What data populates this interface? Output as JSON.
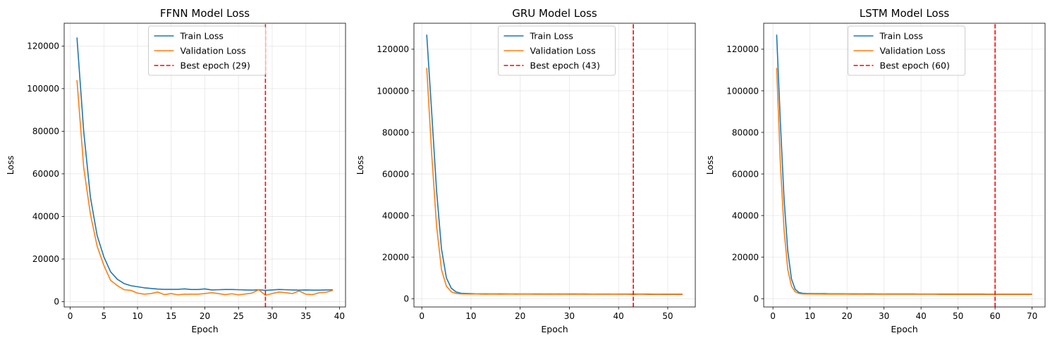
{
  "chart_data": [
    {
      "type": "line",
      "title": "FFNN Model Loss",
      "xlabel": "Epoch",
      "ylabel": "Loss",
      "xlim": [
        -0.9,
        40.9
      ],
      "ylim": [
        -2500,
        130700
      ],
      "xticks": [
        0,
        5,
        10,
        15,
        20,
        25,
        30,
        35,
        40
      ],
      "yticks": [
        0,
        20000,
        40000,
        60000,
        80000,
        100000,
        120000
      ],
      "grid": true,
      "legend_position": "top-center",
      "best_epoch": 29,
      "series": [
        {
          "name": "Train Loss",
          "color": "#1f77b4",
          "style": "solid",
          "x": [
            1,
            2,
            3,
            4,
            5,
            6,
            7,
            8,
            9,
            10,
            11,
            12,
            13,
            14,
            15,
            16,
            17,
            18,
            19,
            20,
            21,
            22,
            23,
            24,
            25,
            26,
            27,
            28,
            29,
            30,
            31,
            32,
            33,
            34,
            35,
            36,
            37,
            38,
            39
          ],
          "y": [
            124000,
            80000,
            49000,
            31000,
            21000,
            14000,
            10500,
            8500,
            7500,
            7000,
            6500,
            6200,
            5900,
            5800,
            5800,
            5800,
            6000,
            5700,
            5700,
            6000,
            5500,
            5600,
            5700,
            5700,
            5600,
            5500,
            5400,
            5600,
            5300,
            5500,
            5700,
            5600,
            5500,
            5400,
            5500,
            5400,
            5400,
            5500,
            5600
          ]
        },
        {
          "name": "Validation Loss",
          "color": "#ff7f0e",
          "style": "solid",
          "x": [
            1,
            2,
            3,
            4,
            5,
            6,
            7,
            8,
            9,
            10,
            11,
            12,
            13,
            14,
            15,
            16,
            17,
            18,
            19,
            20,
            21,
            22,
            23,
            24,
            25,
            26,
            27,
            28,
            29,
            30,
            31,
            32,
            33,
            34,
            35,
            36,
            37,
            38,
            39
          ],
          "y": [
            104000,
            63000,
            41000,
            26000,
            17000,
            10000,
            7500,
            5600,
            5300,
            4000,
            3500,
            3800,
            4500,
            3300,
            3800,
            3200,
            3500,
            3500,
            3500,
            3800,
            4200,
            3800,
            3300,
            3700,
            3200,
            3600,
            4000,
            5600,
            3000,
            3800,
            4500,
            4200,
            3800,
            5000,
            3500,
            3300,
            4200,
            4400,
            5300
          ]
        },
        {
          "name": "Best epoch (29)",
          "color": "#ff0000",
          "style": "dashed",
          "x": [
            29,
            29
          ],
          "y": [
            -2500,
            130700
          ]
        }
      ]
    },
    {
      "type": "line",
      "title": "GRU Model Loss",
      "xlabel": "Epoch",
      "ylabel": "Loss",
      "xlim": [
        -1.6,
        55.6
      ],
      "ylim": [
        -4000,
        132500
      ],
      "xticks": [
        0,
        10,
        20,
        30,
        40,
        50
      ],
      "yticks": [
        0,
        20000,
        40000,
        60000,
        80000,
        100000,
        120000
      ],
      "grid": true,
      "legend_position": "top-center",
      "best_epoch": 43,
      "series": [
        {
          "name": "Train Loss",
          "color": "#1f77b4",
          "style": "solid",
          "x": [
            1,
            2,
            3,
            4,
            5,
            6,
            7,
            8,
            9,
            10,
            11,
            12,
            13,
            14,
            15,
            16,
            17,
            18,
            19,
            20,
            21,
            22,
            23,
            24,
            25,
            26,
            27,
            28,
            29,
            30,
            31,
            32,
            33,
            34,
            35,
            36,
            37,
            38,
            39,
            40,
            41,
            42,
            43,
            44,
            45,
            46,
            47,
            48,
            49,
            50,
            51,
            52,
            53
          ],
          "y": [
            127000,
            90000,
            52000,
            24000,
            10000,
            5000,
            3200,
            2600,
            2500,
            2400,
            2350,
            2300,
            2300,
            2300,
            2300,
            2300,
            2300,
            2250,
            2250,
            2250,
            2250,
            2250,
            2250,
            2250,
            2250,
            2250,
            2250,
            2250,
            2250,
            2250,
            2250,
            2250,
            2250,
            2200,
            2200,
            2200,
            2200,
            2200,
            2200,
            2200,
            2200,
            2200,
            2200,
            2200,
            2200,
            2200,
            2150,
            2150,
            2150,
            2150,
            2150,
            2150,
            2150
          ]
        },
        {
          "name": "Validation Loss",
          "color": "#ff7f0e",
          "style": "solid",
          "x": [
            1,
            2,
            3,
            4,
            5,
            6,
            7,
            8,
            9,
            10,
            11,
            12,
            13,
            14,
            15,
            16,
            17,
            18,
            19,
            20,
            21,
            22,
            23,
            24,
            25,
            26,
            27,
            28,
            29,
            30,
            31,
            32,
            33,
            34,
            35,
            36,
            37,
            38,
            39,
            40,
            41,
            42,
            43,
            44,
            45,
            46,
            47,
            48,
            49,
            50,
            51,
            52,
            53
          ],
          "y": [
            111000,
            70000,
            35000,
            14000,
            6000,
            3300,
            2500,
            2300,
            2250,
            2200,
            2300,
            2150,
            2100,
            2200,
            2150,
            2100,
            2150,
            2200,
            2100,
            2150,
            2200,
            2150,
            2100,
            2100,
            2150,
            2100,
            2150,
            2100,
            2150,
            2100,
            2100,
            2150,
            2100,
            2100,
            2150,
            2100,
            2100,
            2100,
            2150,
            2100,
            2100,
            2100,
            2000,
            2100,
            2100,
            2050,
            2050,
            2100,
            2050,
            2050,
            2050,
            2050,
            2050
          ]
        },
        {
          "name": "Best epoch (43)",
          "color": "#ff0000",
          "style": "dashed",
          "x": [
            43,
            43
          ],
          "y": [
            -4000,
            132500
          ]
        }
      ]
    },
    {
      "type": "line",
      "title": "LSTM Model Loss",
      "xlabel": "Epoch",
      "ylabel": "Loss",
      "xlim": [
        -2.5,
        73.5
      ],
      "ylim": [
        -4000,
        132500
      ],
      "xticks": [
        0,
        10,
        20,
        30,
        40,
        50,
        60,
        70
      ],
      "yticks": [
        0,
        20000,
        40000,
        60000,
        80000,
        100000,
        120000
      ],
      "grid": true,
      "legend_position": "top-center",
      "best_epoch": 60,
      "series": [
        {
          "name": "Train Loss",
          "color": "#1f77b4",
          "style": "solid",
          "x": [
            1,
            2,
            3,
            4,
            5,
            6,
            7,
            8,
            9,
            10,
            11,
            12,
            13,
            14,
            15,
            16,
            17,
            18,
            19,
            20,
            21,
            22,
            23,
            24,
            25,
            26,
            27,
            28,
            29,
            30,
            31,
            32,
            33,
            34,
            35,
            36,
            37,
            38,
            39,
            40,
            41,
            42,
            43,
            44,
            45,
            46,
            47,
            48,
            49,
            50,
            51,
            52,
            53,
            54,
            55,
            56,
            57,
            58,
            59,
            60,
            61,
            62,
            63,
            64,
            65,
            66,
            67,
            68,
            69,
            70
          ],
          "y": [
            127000,
            85000,
            48000,
            23000,
            9500,
            4500,
            3000,
            2600,
            2500,
            2450,
            2400,
            2400,
            2400,
            2400,
            2350,
            2350,
            2350,
            2350,
            2350,
            2300,
            2300,
            2300,
            2300,
            2300,
            2300,
            2300,
            2300,
            2250,
            2250,
            2250,
            2250,
            2250,
            2250,
            2250,
            2250,
            2250,
            2250,
            2250,
            2200,
            2200,
            2200,
            2200,
            2200,
            2200,
            2200,
            2200,
            2200,
            2200,
            2200,
            2200,
            2200,
            2200,
            2200,
            2200,
            2200,
            2200,
            2200,
            2150,
            2150,
            2150,
            2150,
            2150,
            2150,
            2150,
            2150,
            2150,
            2150,
            2150,
            2150,
            2150
          ]
        },
        {
          "name": "Validation Loss",
          "color": "#ff7f0e",
          "style": "solid",
          "x": [
            1,
            2,
            3,
            4,
            5,
            6,
            7,
            8,
            9,
            10,
            11,
            12,
            13,
            14,
            15,
            16,
            17,
            18,
            19,
            20,
            21,
            22,
            23,
            24,
            25,
            26,
            27,
            28,
            29,
            30,
            31,
            32,
            33,
            34,
            35,
            36,
            37,
            38,
            39,
            40,
            41,
            42,
            43,
            44,
            45,
            46,
            47,
            48,
            49,
            50,
            51,
            52,
            53,
            54,
            55,
            56,
            57,
            58,
            59,
            60,
            61,
            62,
            63,
            64,
            65,
            66,
            67,
            68,
            69,
            70
          ],
          "y": [
            111000,
            65000,
            33000,
            14000,
            6000,
            3300,
            2500,
            2300,
            2250,
            2250,
            2200,
            2200,
            2200,
            2150,
            2150,
            2150,
            2150,
            2150,
            2150,
            2150,
            2100,
            2100,
            2100,
            2150,
            2100,
            2100,
            2100,
            2100,
            2100,
            2150,
            2100,
            2100,
            2100,
            2100,
            2100,
            2100,
            2100,
            2100,
            2100,
            2100,
            2100,
            2100,
            2100,
            2100,
            2050,
            2050,
            2050,
            2050,
            2050,
            2050,
            2050,
            2050,
            2050,
            2050,
            2050,
            2050,
            2050,
            2050,
            2050,
            2000,
            2050,
            2050,
            2050,
            2050,
            2050,
            2050,
            2050,
            2050,
            2050,
            2050
          ]
        },
        {
          "name": "Best epoch (60)",
          "color": "#ff0000",
          "style": "dashed",
          "x": [
            60,
            60
          ],
          "y": [
            -4000,
            132500
          ]
        }
      ]
    }
  ]
}
